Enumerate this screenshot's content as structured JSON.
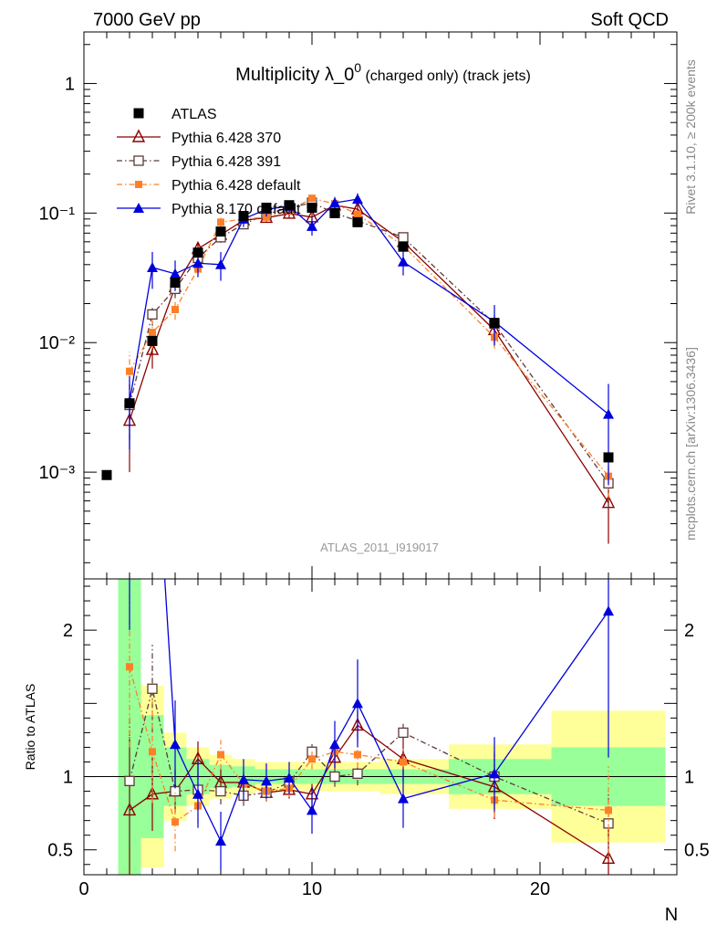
{
  "header": {
    "left": "7000 GeV pp",
    "right": "Soft QCD"
  },
  "side_labels": {
    "top": "Rivet 3.1.10, ≥ 200k events",
    "bottom": "mcplots.cern.ch [arXiv:1306.3436]"
  },
  "colors": {
    "atlas": "#000000",
    "p370": "#8b0000",
    "p391": "#5c3a3a",
    "pdef": "#ff7f27",
    "p8": "#0000dd",
    "band_inner": "#99ff99",
    "band_outer": "#ffff99"
  },
  "chart_data": {
    "type": "scatter",
    "title": "Multiplicity λ_0",
    "title_sup": "0",
    "title_suffix": " (charged only) (track jets)",
    "analysis_label": "ATLAS_2011_I919017",
    "xlabel": "N",
    "ylabel_ratio": "Ratio to ATLAS",
    "xlim": [
      0,
      26
    ],
    "ylim_main": [
      0.00015,
      2.5
    ],
    "yscale_main": "log",
    "ylim_ratio": [
      0.33,
      2.35
    ],
    "x_ticks": [
      0,
      10,
      20
    ],
    "y_ticks_main": [
      "1",
      "10⁻¹",
      "10⁻²",
      "10⁻³"
    ],
    "y_ticks_ratio": [
      "2",
      "1",
      "0.5"
    ],
    "legend_position": "top-left",
    "x": [
      1,
      2,
      3,
      4,
      5,
      6,
      7,
      8,
      9,
      10,
      11,
      12,
      14,
      18,
      23
    ],
    "series": [
      {
        "name": "ATLAS",
        "marker": "filled-square",
        "y": [
          0.00095,
          0.0034,
          0.0103,
          0.029,
          0.0495,
          0.072,
          0.095,
          0.11,
          0.115,
          0.11,
          0.1,
          0.085,
          0.055,
          0.0142,
          0.0013
        ],
        "band_inner": [
          0,
          1.75,
          0.42,
          0.2,
          0.12,
          0.08,
          0.07,
          0.05,
          0.05,
          0.05,
          0.05,
          0.05,
          0.05,
          0.12,
          0.2
        ],
        "band_outer": [
          0,
          2.5,
          0.62,
          0.3,
          0.2,
          0.15,
          0.12,
          0.1,
          0.1,
          0.1,
          0.1,
          0.1,
          0.12,
          0.22,
          0.45
        ]
      },
      {
        "name": "Pythia 6.428 370",
        "marker": "open-triangle",
        "line": "solid",
        "x": [
          2,
          3,
          4,
          5,
          6,
          7,
          8,
          9,
          10,
          11,
          12,
          14,
          18,
          23
        ],
        "y": [
          0.0025,
          0.0088,
          0.027,
          0.053,
          0.068,
          0.088,
          0.092,
          0.099,
          0.093,
          0.115,
          0.107,
          0.06,
          0.0125,
          0.00058
        ],
        "err": [
          0.0015,
          0.0025,
          0.004,
          0.006,
          0.006,
          0.007,
          0.007,
          0.007,
          0.007,
          0.008,
          0.008,
          0.007,
          0.003,
          0.0003
        ],
        "ratio": [
          0.77,
          0.88,
          0.9,
          1.12,
          0.96,
          0.96,
          0.89,
          0.91,
          0.88,
          1.13,
          1.35,
          1.12,
          0.93,
          0.44
        ],
        "ratio_err": [
          0.5,
          0.25,
          0.15,
          0.12,
          0.09,
          0.07,
          0.06,
          0.06,
          0.07,
          0.08,
          0.1,
          0.15,
          0.22,
          0.25
        ]
      },
      {
        "name": "Pythia 6.428 391",
        "marker": "open-square",
        "line": "dash-dot",
        "x": [
          2,
          3,
          4,
          5,
          6,
          7,
          8,
          9,
          10,
          11,
          12,
          14,
          18,
          23
        ],
        "y": [
          0.0033,
          0.0165,
          0.026,
          0.045,
          0.065,
          0.082,
          0.098,
          0.11,
          0.12,
          0.1,
          0.087,
          0.065,
          0.014,
          0.00082
        ],
        "err": [
          0.0015,
          0.003,
          0.004,
          0.005,
          0.006,
          0.007,
          0.007,
          0.007,
          0.007,
          0.007,
          0.007,
          0.007,
          0.003,
          0.0003
        ],
        "ratio": [
          0.97,
          1.6,
          0.9,
          0.91,
          0.9,
          0.87,
          0.89,
          0.96,
          1.17,
          1.0,
          1.02,
          1.3,
          1.0,
          0.68
        ],
        "ratio_err": [
          0.45,
          0.3,
          0.14,
          0.1,
          0.09,
          0.07,
          0.06,
          0.06,
          0.07,
          0.07,
          0.08,
          0.06,
          0.2,
          0.2
        ]
      },
      {
        "name": "Pythia 6.428 default",
        "marker": "filled-square-small",
        "line": "dash-dot",
        "x": [
          2,
          3,
          4,
          5,
          6,
          7,
          8,
          9,
          10,
          11,
          12,
          14,
          18,
          23
        ],
        "y": [
          0.006,
          0.012,
          0.018,
          0.037,
          0.085,
          0.09,
          0.093,
          0.105,
          0.13,
          0.118,
          0.098,
          0.056,
          0.011,
          0.00093
        ],
        "err": [
          0.0025,
          0.003,
          0.003,
          0.005,
          0.007,
          0.007,
          0.007,
          0.007,
          0.008,
          0.008,
          0.007,
          0.006,
          0.002,
          0.0003
        ],
        "ratio": [
          1.75,
          1.17,
          0.69,
          0.8,
          1.15,
          0.95,
          0.9,
          0.92,
          1.12,
          1.17,
          1.15,
          1.1,
          0.84,
          0.77
        ],
        "ratio_err": [
          0.55,
          0.35,
          0.2,
          0.12,
          0.1,
          0.08,
          0.07,
          0.06,
          0.07,
          0.08,
          0.09,
          0.09,
          0.12,
          0.3
        ]
      },
      {
        "name": "Pythia 8.170 default",
        "marker": "filled-triangle",
        "line": "solid",
        "x": [
          2,
          3,
          4,
          5,
          6,
          7,
          8,
          9,
          10,
          11,
          12,
          14,
          18,
          23
        ],
        "y": [
          0.0035,
          0.038,
          0.034,
          0.041,
          0.04,
          0.09,
          0.107,
          0.113,
          0.079,
          0.12,
          0.128,
          0.042,
          0.0145,
          0.0028
        ],
        "err": [
          0.002,
          0.012,
          0.009,
          0.009,
          0.01,
          0.012,
          0.013,
          0.012,
          0.012,
          0.013,
          0.014,
          0.009,
          0.005,
          0.002
        ],
        "ratio": [
          3.5,
          3.7,
          1.22,
          0.88,
          0.56,
          0.98,
          0.97,
          0.99,
          0.77,
          1.22,
          1.5,
          0.85,
          1.02,
          2.13
        ],
        "ratio_err": [
          1.5,
          1.3,
          0.3,
          0.23,
          0.2,
          0.14,
          0.12,
          0.11,
          0.16,
          0.16,
          0.3,
          0.2,
          0.25,
          1.0
        ]
      }
    ]
  }
}
